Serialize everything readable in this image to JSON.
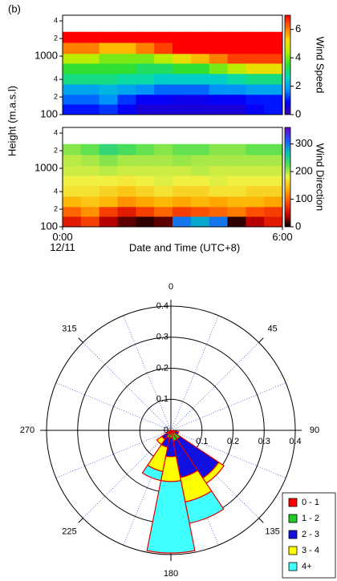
{
  "chart_data": [
    {
      "type": "heatmap",
      "panel_label": "(b)",
      "ylabel": "Height (m.a.s.l)",
      "x": [
        0,
        0.5,
        1,
        1.5,
        2,
        2.5,
        3,
        3.5,
        4,
        4.5,
        5,
        5.5,
        6
      ],
      "y": [
        100,
        150,
        220,
        330,
        500,
        750,
        1100,
        1700,
        2600
      ],
      "xlim": [
        0,
        6
      ],
      "ylim": [
        100,
        5000
      ],
      "log_y": true,
      "yticks": [
        100,
        {
          "value": 200,
          "label": "2"
        },
        {
          "value": 400,
          "label": "4"
        },
        1000,
        {
          "value": 2000,
          "label": "2"
        },
        {
          "value": 4000,
          "label": "4"
        }
      ],
      "z": [
        [
          1,
          1,
          1.2,
          0.8,
          0.5,
          0.5,
          0.5,
          0.5,
          0.5,
          0.5,
          0.8,
          1
        ],
        [
          1.5,
          1.5,
          1.8,
          1.2,
          0.8,
          0.8,
          0.7,
          0.7,
          0.8,
          0.8,
          1,
          1
        ],
        [
          2,
          2,
          2.2,
          2,
          1.8,
          1.5,
          1.5,
          1.5,
          1.8,
          1.8,
          2,
          2
        ],
        [
          3,
          3,
          3,
          2.8,
          2.8,
          2.5,
          2.5,
          2.5,
          2.5,
          2.8,
          3,
          3
        ],
        [
          3.5,
          3.5,
          3.5,
          3.5,
          3.2,
          3.2,
          3.5,
          3.5,
          4,
          4.5,
          5,
          5
        ],
        [
          4.5,
          4.5,
          4,
          4,
          4,
          4.5,
          5,
          5.5,
          6,
          6.5,
          6.5,
          6.5
        ],
        [
          6,
          6,
          5.5,
          5.5,
          6,
          6.5,
          7,
          7,
          7,
          7,
          7,
          7
        ],
        [
          7,
          7,
          7,
          7,
          7,
          7,
          7,
          7,
          7,
          7,
          7,
          7
        ]
      ],
      "clim": [
        0,
        7
      ],
      "cticks": [
        0,
        2,
        4,
        6
      ],
      "clabel": "Wind Speed",
      "colors": [
        "#3a00a8",
        "#0000ff",
        "#0090ff",
        "#00d8c0",
        "#30e030",
        "#b0f000",
        "#ffd800",
        "#ff7000",
        "#ff0000"
      ]
    },
    {
      "type": "heatmap",
      "xlabel": "Date and Time (UTC+8)",
      "x": [
        0,
        0.5,
        1,
        1.5,
        2,
        2.5,
        3,
        3.5,
        4,
        4.5,
        5,
        5.5,
        6
      ],
      "y": [
        100,
        150,
        220,
        330,
        500,
        750,
        1100,
        1700,
        2600
      ],
      "xlim": [
        0,
        6
      ],
      "ylim": [
        100,
        5000
      ],
      "log_y": true,
      "xticks": [
        {
          "value": 0,
          "label": "0:00\n12/11"
        },
        {
          "value": 6,
          "label": "6:00"
        }
      ],
      "yticks": [
        100,
        {
          "value": 200,
          "label": "2"
        },
        {
          "value": 400,
          "label": "4"
        },
        1000,
        {
          "value": 2000,
          "label": "2"
        },
        {
          "value": 4000,
          "label": "4"
        }
      ],
      "z": [
        [
          60,
          80,
          40,
          20,
          10,
          20,
          300,
          280,
          300,
          10,
          40,
          60
        ],
        [
          100,
          120,
          80,
          60,
          80,
          100,
          80,
          90,
          100,
          110,
          90,
          80
        ],
        [
          140,
          150,
          140,
          120,
          130,
          140,
          130,
          140,
          130,
          140,
          140,
          130
        ],
        [
          170,
          170,
          160,
          150,
          160,
          170,
          160,
          160,
          170,
          170,
          160,
          160
        ],
        [
          180,
          180,
          180,
          175,
          180,
          185,
          180,
          180,
          185,
          180,
          180,
          180
        ],
        [
          190,
          190,
          195,
          190,
          190,
          190,
          190,
          195,
          190,
          190,
          190,
          190
        ],
        [
          195,
          200,
          210,
          200,
          200,
          200,
          205,
          200,
          200,
          200,
          200,
          200
        ],
        [
          210,
          220,
          240,
          230,
          220,
          210,
          220,
          220,
          210,
          210,
          220,
          220
        ]
      ],
      "clim": [
        0,
        360
      ],
      "cticks": [
        0,
        100,
        200,
        300
      ],
      "clabel": "Wind Direction",
      "colors": [
        "#000000",
        "#d00000",
        "#ff5000",
        "#ffb000",
        "#f0f040",
        "#50e050",
        "#00c0c0",
        "#2050ff",
        "#6a00c0"
      ]
    },
    {
      "type": "windrose",
      "directions": [
        0,
        22.5,
        45,
        67.5,
        90,
        112.5,
        135,
        157.5,
        180,
        202.5,
        225,
        247.5,
        270,
        292.5,
        315,
        337.5
      ],
      "rlim": [
        0,
        0.4
      ],
      "rticks": [
        0,
        0.1,
        0.2,
        0.3,
        0.4
      ],
      "thetaticks": [
        0,
        45,
        90,
        135,
        180,
        225,
        270,
        315
      ],
      "series": [
        {
          "name": "0 - 1",
          "color": "#ff0000",
          "values": [
            0,
            0,
            0,
            0,
            0,
            0.005,
            0.005,
            0.005,
            0.005,
            0.005,
            0.005,
            0,
            0,
            0,
            0,
            0
          ]
        },
        {
          "name": "1 - 2",
          "color": "#22cc22",
          "values": [
            0,
            0,
            0,
            0,
            0,
            0.01,
            0.03,
            0.03,
            0.02,
            0.02,
            0.01,
            0,
            0,
            0,
            0,
            0
          ]
        },
        {
          "name": "2 - 3",
          "color": "#1010e0",
          "values": [
            0,
            0,
            0,
            0,
            0,
            0.01,
            0.15,
            0.12,
            0.06,
            0.03,
            0.02,
            0,
            0,
            0,
            0,
            0
          ]
        },
        {
          "name": "3 - 4",
          "color": "#ffff00",
          "values": [
            0,
            0,
            0,
            0,
            0,
            0,
            0.02,
            0.08,
            0.08,
            0.08,
            0.02,
            0,
            0,
            0,
            0,
            0
          ]
        },
        {
          "name": "4+",
          "color": "#40ffff",
          "values": [
            0,
            0,
            0,
            0,
            0,
            0,
            0,
            0.07,
            0.23,
            0.03,
            0,
            0,
            0,
            0,
            0,
            0
          ]
        }
      ],
      "outline": "#e00000"
    }
  ]
}
